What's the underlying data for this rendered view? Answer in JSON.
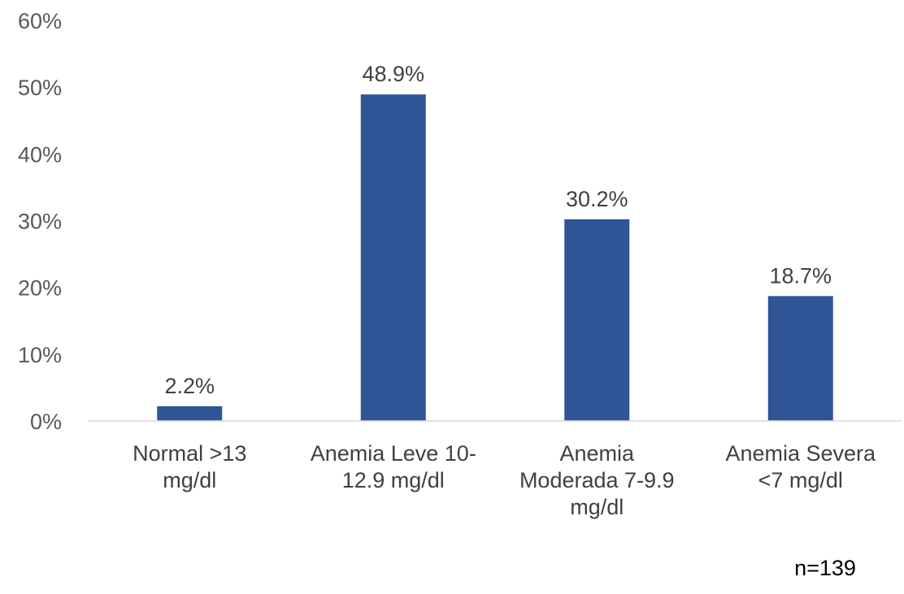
{
  "chart_data": {
    "type": "bar",
    "categories": [
      [
        "Normal >13",
        "mg/dl"
      ],
      [
        "Anemia Leve 10-",
        "12.9 mg/dl"
      ],
      [
        "Anemia",
        "Moderada 7-9.9",
        "mg/dl"
      ],
      [
        "Anemia Severa",
        "<7 mg/dl"
      ]
    ],
    "values": [
      2.2,
      48.9,
      30.2,
      18.7
    ],
    "data_labels": [
      "2.2%",
      "48.9%",
      "30.2%",
      "18.7%"
    ],
    "ylim": [
      0,
      60
    ],
    "yticks": [
      0,
      10,
      20,
      30,
      40,
      50,
      60
    ],
    "ytick_labels": [
      "0%",
      "10%",
      "20%",
      "30%",
      "40%",
      "50%",
      "60%"
    ],
    "grid": false,
    "bar_color": "#2F5597",
    "axis_color": "#D9D9D9",
    "note": "n=139"
  }
}
